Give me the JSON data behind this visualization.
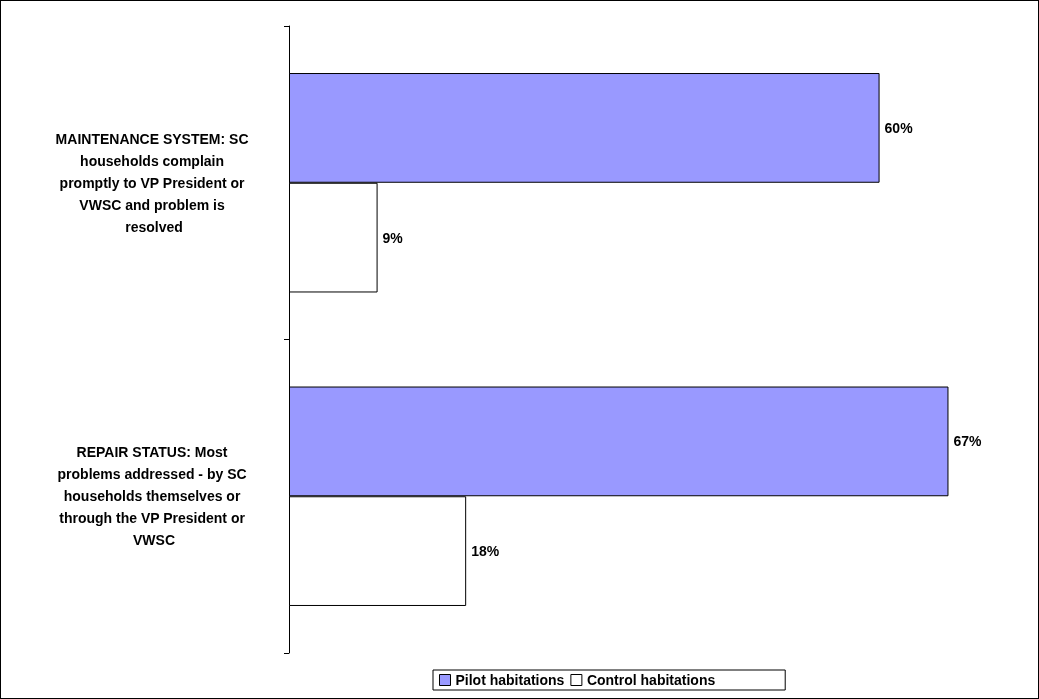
{
  "chart_data": {
    "type": "bar",
    "orientation": "horizontal",
    "categories": [
      "MAINTENANCE SYSTEM: SC households complain promptly to VP President or VWSC and problem is resolved",
      "REPAIR STATUS: Most problems addressed - by SC households themselves or through the VP President or VWSC"
    ],
    "series": [
      {
        "name": "Pilot habitations",
        "color": "#9999ff",
        "values": [
          60,
          67
        ],
        "value_labels": [
          "60%",
          "67%"
        ]
      },
      {
        "name": "Control habitations",
        "color": "#ffffff",
        "values": [
          9,
          18
        ],
        "value_labels": [
          "9%",
          "18%"
        ]
      }
    ],
    "legend": "bottom"
  }
}
